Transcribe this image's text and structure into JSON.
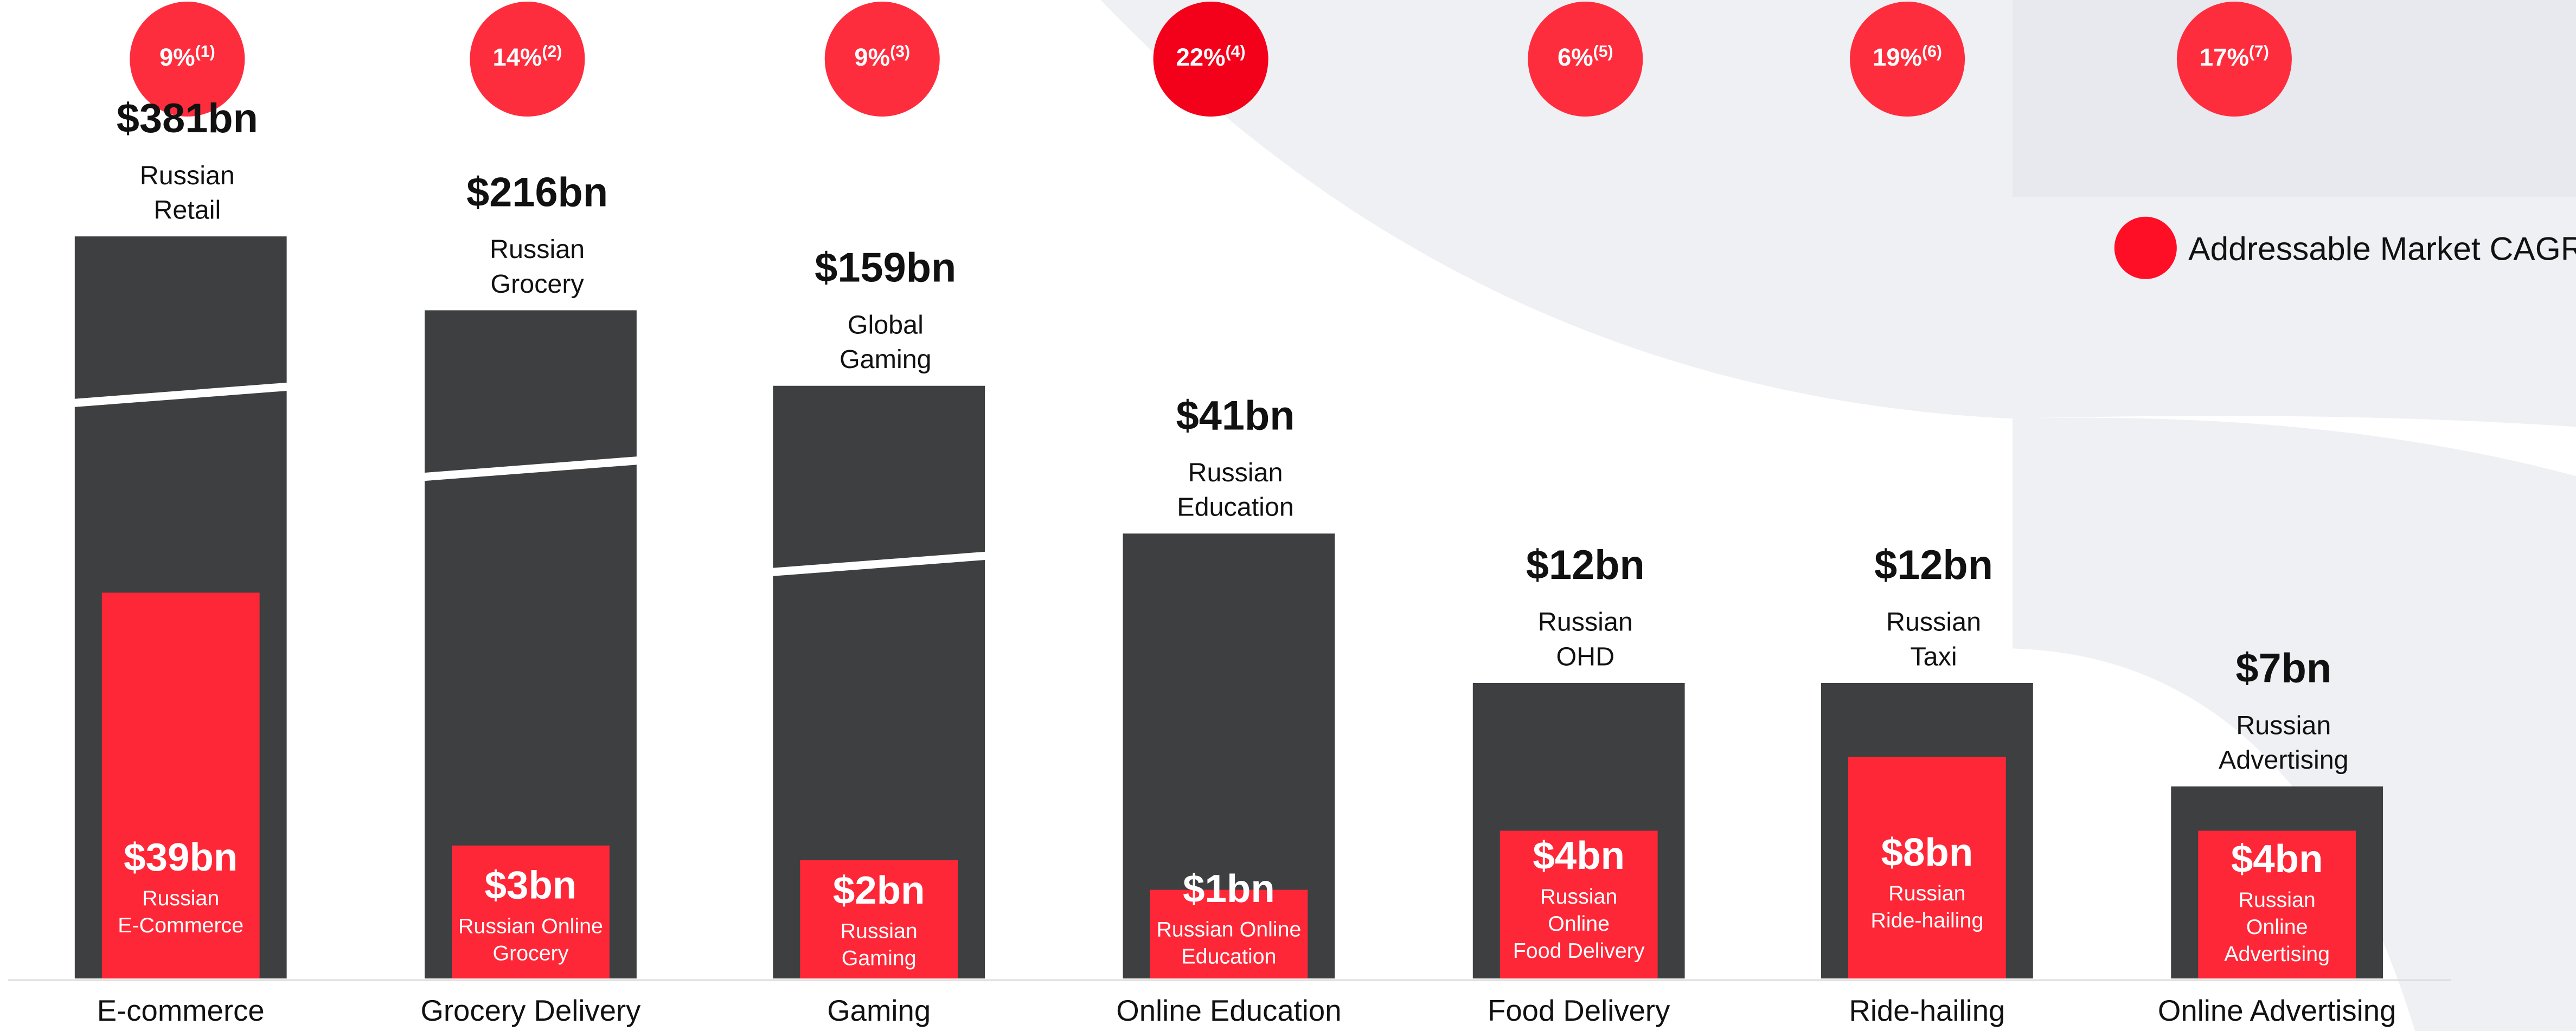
{
  "legend": "Addressable Market CAGR",
  "items": [
    {
      "cagr": "9%",
      "note": "(1)",
      "market_value": "$381bn",
      "market_lines": [
        "Russian",
        "Retail"
      ],
      "addressable_value": "$39bn",
      "addressable_lines": [
        "Russian",
        "E-Commerce"
      ],
      "category": "E-commerce"
    },
    {
      "cagr": "14%",
      "note": "(2)",
      "market_value": "$216bn",
      "market_lines": [
        "Russian",
        "Grocery"
      ],
      "addressable_value": "$3bn",
      "addressable_lines": [
        "Russian Online",
        "Grocery"
      ],
      "category": "Grocery Delivery"
    },
    {
      "cagr": "9%",
      "note": "(3)",
      "market_value": "$159bn",
      "market_lines": [
        "Global",
        "Gaming"
      ],
      "addressable_value": "$2bn",
      "addressable_lines": [
        "Russian",
        "Gaming"
      ],
      "category": "Gaming"
    },
    {
      "cagr": "22%",
      "note": "(4)",
      "market_value": "$41bn",
      "market_lines": [
        "Russian",
        "Education"
      ],
      "addressable_value": "$1bn",
      "addressable_lines": [
        "Russian Online",
        "Education"
      ],
      "category": "Online Education"
    },
    {
      "cagr": "6%",
      "note": "(5)",
      "market_value": "$12bn",
      "market_lines": [
        "Russian",
        "OHD"
      ],
      "addressable_value": "$4bn",
      "addressable_lines": [
        "Russian",
        "Online",
        "Food Delivery"
      ],
      "category": "Food Delivery"
    },
    {
      "cagr": "19%",
      "note": "(6)",
      "market_value": "$12bn",
      "market_lines": [
        "Russian",
        "Taxi"
      ],
      "addressable_value": "$8bn",
      "addressable_lines": [
        "Russian",
        "Ride-hailing"
      ],
      "category": "Ride-hailing"
    },
    {
      "cagr": "17%",
      "note": "(7)",
      "market_value": "$7bn",
      "market_lines": [
        "Russian",
        "Advertising"
      ],
      "addressable_value": "$4bn",
      "addressable_lines": [
        "Russian",
        "Online",
        "Advertising"
      ],
      "category": "Online Advertising"
    }
  ]
}
